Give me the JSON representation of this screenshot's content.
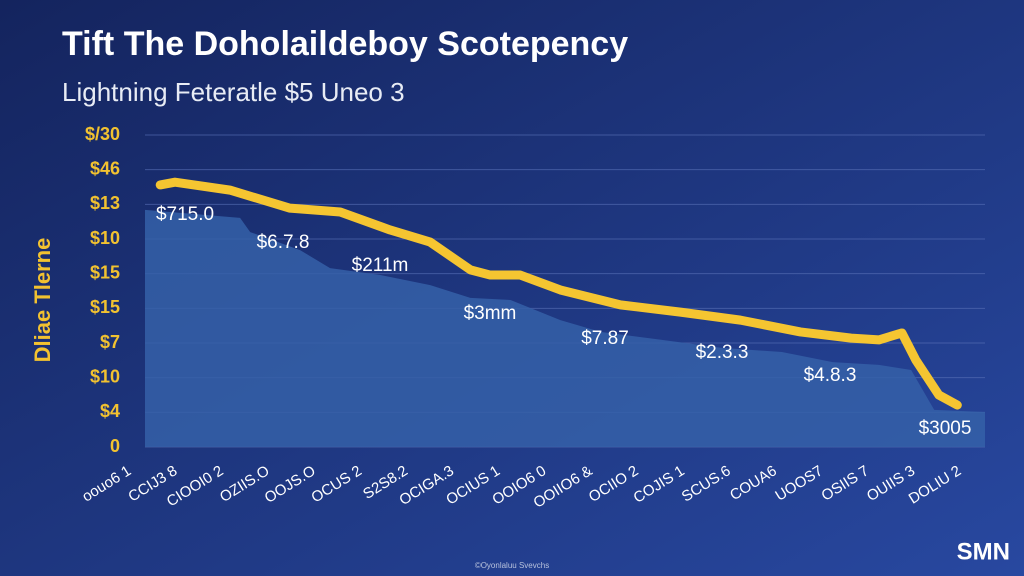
{
  "chart_data": {
    "type": "line",
    "title": "Tift The Doholaildeboy Scotepency",
    "subtitle": "Lightning Feteratle $5 Uneo 3",
    "y_axis_label": "Dliae Tlerne",
    "y_labels": [
      "0",
      "$4",
      "$10",
      "$7",
      "$15",
      "$15",
      "$10",
      "$13",
      "$46",
      "$/30"
    ],
    "ylim": [
      0,
      9
    ],
    "xlim": [
      0,
      18.2
    ],
    "grid": true,
    "categories": [
      "oouo6 1",
      "CCIJ3 8",
      "CIOOI0 2",
      "OZIIS.O",
      "OOJS.O",
      "OCUS 2",
      "S2S8.2",
      "OCIGA.3",
      "OCIUS 1",
      "OOIO6 0",
      "OOIIO6 &",
      "OCIIO 2",
      "COJIS 1",
      "SCUS.6",
      "COUA6",
      "UOOS7",
      "OSIIS 7",
      "OUIIS 3",
      "DOLIU 2"
    ],
    "series": [
      {
        "type": "area",
        "color": "#3560a8",
        "x": [
          0,
          2.06,
          2.28,
          3.36,
          4.01,
          5.1,
          6.18,
          7.05,
          7.92,
          9.0,
          9.87,
          11.2,
          12.5,
          13.8,
          14.9,
          15.9,
          16.6,
          17.1,
          18.2
        ],
        "values": [
          6.84,
          6.61,
          6.2,
          5.68,
          5.16,
          4.96,
          4.67,
          4.3,
          4.24,
          3.66,
          3.32,
          3.09,
          2.86,
          2.74,
          2.45,
          2.37,
          2.22,
          1.07,
          1.01
        ]
      },
      {
        "type": "line",
        "color": "#f5c531",
        "x": [
          0.33,
          0.65,
          1.84,
          3.14,
          4.23,
          5.31,
          6.18,
          7.05,
          7.48,
          8.13,
          9.0,
          10.3,
          11.6,
          12.9,
          14.2,
          15.3,
          15.9,
          16.4,
          16.7,
          17.2,
          17.6
        ],
        "values": [
          7.56,
          7.64,
          7.41,
          6.89,
          6.78,
          6.26,
          5.91,
          5.11,
          4.96,
          4.96,
          4.53,
          4.1,
          3.89,
          3.66,
          3.32,
          3.14,
          3.09,
          3.29,
          2.51,
          1.5,
          1.21
        ]
      }
    ],
    "annotations": [
      "$715.0",
      "$6.7.8",
      "$211m",
      "$3mm",
      "$7.87",
      "$2.3.3",
      "$4.8.3",
      "$3005"
    ],
    "watermark": "SMN",
    "footer": "©Oyonlaluu Svevchs"
  }
}
